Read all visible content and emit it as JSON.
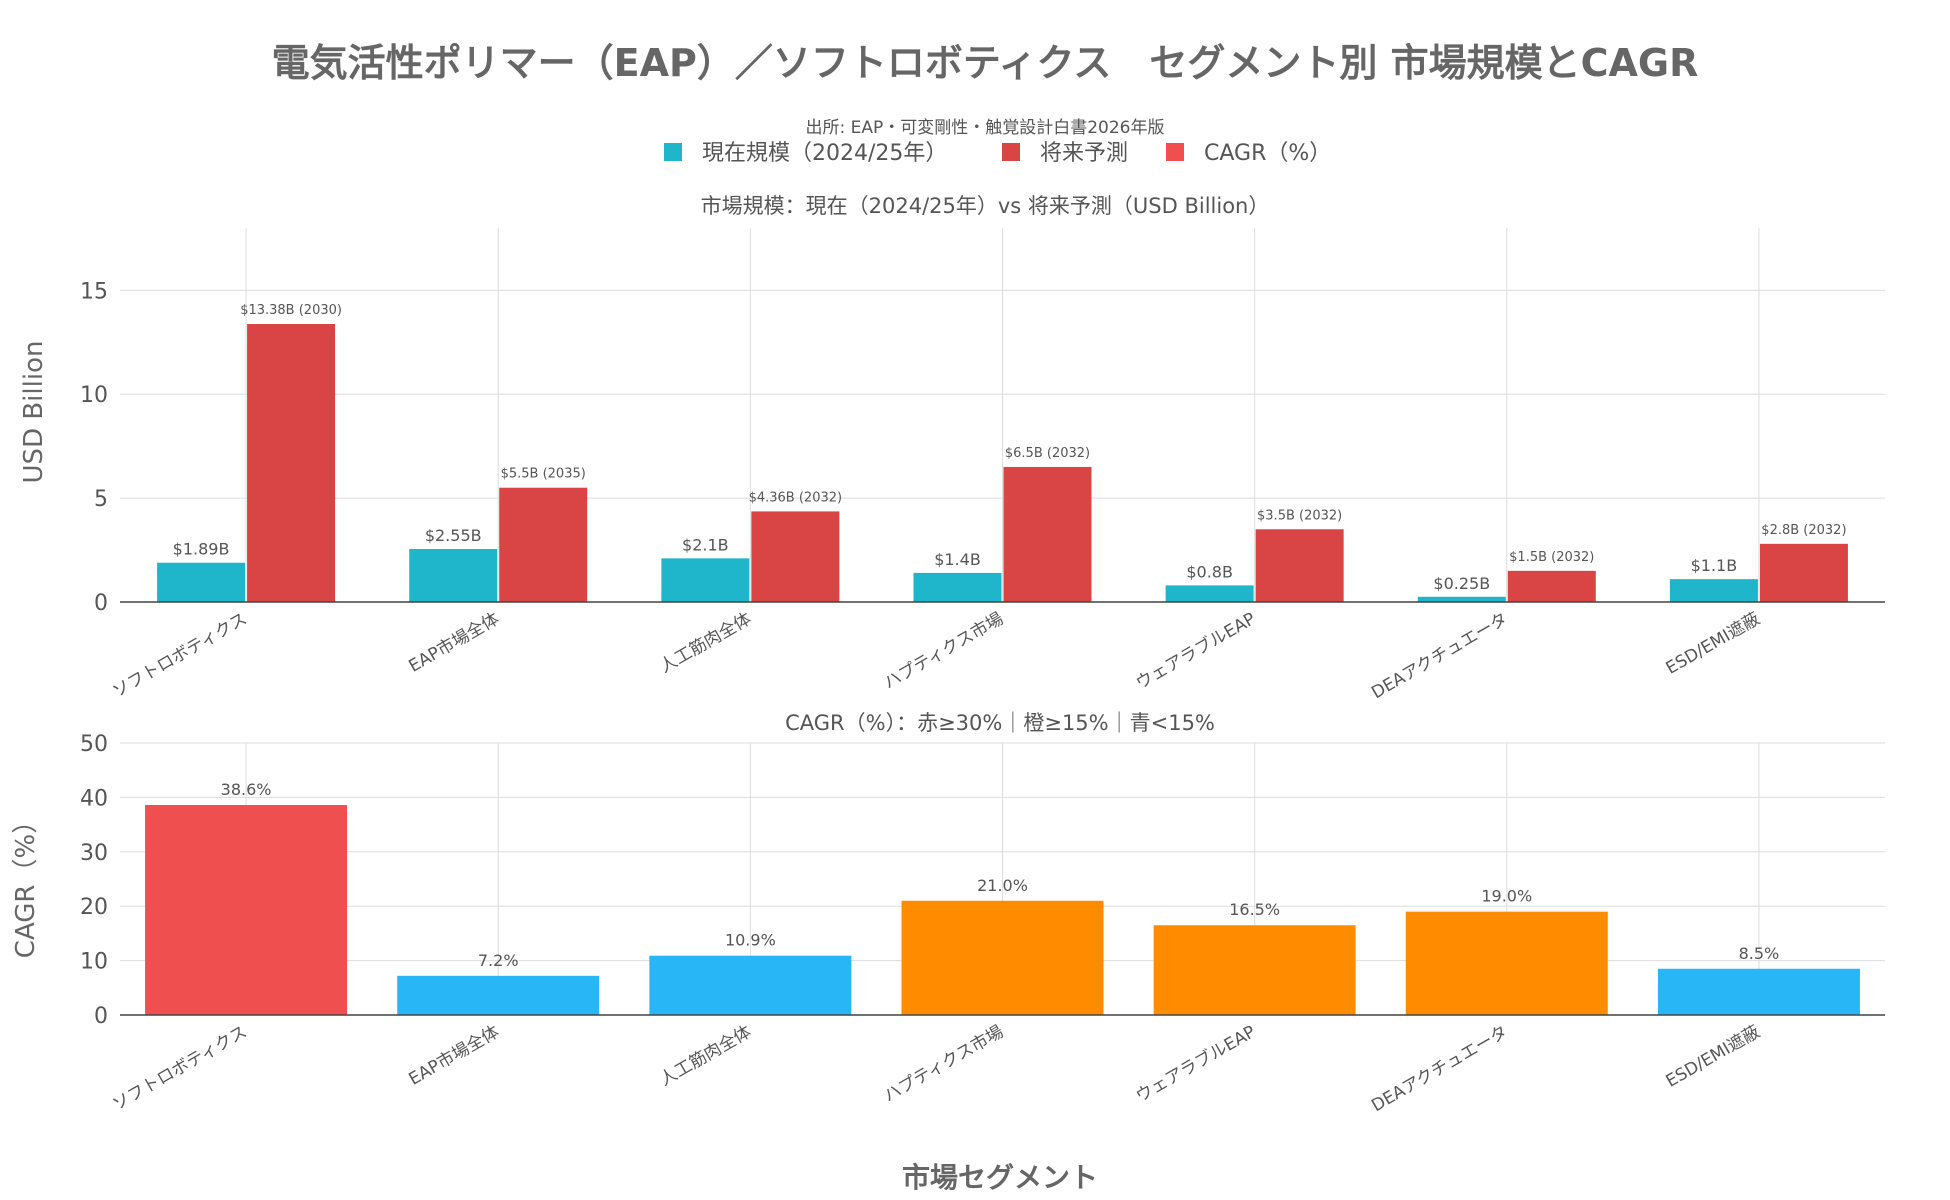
{
  "title": "電気活性ポリマー（EAP）／ソフトロボティクス　セグメント別 市場規模とCAGR",
  "subtitle": "出所: EAP・可変剛性・触覚設計白書2026年版",
  "legend": [
    {
      "label": "現在規模（2024/25年）",
      "color": "#1FB6CC"
    },
    {
      "label": "将来予測",
      "color": "#D94545"
    },
    {
      "label": "CAGR（%）",
      "color": "#EF4F4F"
    }
  ],
  "xlabel": "市場セグメント",
  "chart_data": [
    {
      "type": "bar",
      "title": "市場規模：現在（2024/25年）vs 将来予測（USD Billion）",
      "ylabel": "USD Billion",
      "ylim": [
        0,
        18
      ],
      "yticks": [
        0,
        5,
        10,
        15
      ],
      "grid": true,
      "categories": [
        "ソフトロボティクス",
        "EAP市場全体",
        "人工筋肉全体",
        "ハプティクス市場",
        "ウェアラブルEAP",
        "DEAアクチュエータ",
        "ESD/EMI遮蔽"
      ],
      "series": [
        {
          "name": "現在規模（2024/25年）",
          "color": "#1FB6CC",
          "values": [
            1.89,
            2.55,
            2.1,
            1.4,
            0.8,
            0.25,
            1.1
          ],
          "labels": [
            "$1.89B",
            "$2.55B",
            "$2.1B",
            "$1.4B",
            "$0.8B",
            "$0.25B",
            "$1.1B"
          ]
        },
        {
          "name": "将来予測",
          "color": "#D94545",
          "values": [
            13.38,
            5.5,
            4.36,
            6.5,
            3.5,
            1.5,
            2.8
          ],
          "labels": [
            "$13.38B (2030)",
            "$5.5B (2035)",
            "$4.36B (2032)",
            "$6.5B (2032)",
            "$3.5B (2032)",
            "$1.5B (2032)",
            "$2.8B (2032)"
          ]
        }
      ]
    },
    {
      "type": "bar",
      "title": "CAGR（%）：赤≥30%｜橙≥15%｜青<15%",
      "ylabel": "CAGR（%）",
      "ylim": [
        0,
        50
      ],
      "yticks": [
        0,
        10,
        20,
        30,
        40,
        50
      ],
      "grid": true,
      "categories": [
        "ソフトロボティクス",
        "EAP市場全体",
        "人工筋肉全体",
        "ハプティクス市場",
        "ウェアラブルEAP",
        "DEAアクチュエータ",
        "ESD/EMI遮蔽"
      ],
      "values": [
        38.6,
        7.2,
        10.9,
        21.0,
        16.5,
        19.0,
        8.5
      ],
      "labels": [
        "38.6%",
        "7.2%",
        "10.9%",
        "21.0%",
        "16.5%",
        "19.0%",
        "8.5%"
      ],
      "colors": [
        "#EF4F4F",
        "#29B6F6",
        "#29B6F6",
        "#FF8C00",
        "#FF8C00",
        "#FF8C00",
        "#29B6F6"
      ]
    }
  ]
}
